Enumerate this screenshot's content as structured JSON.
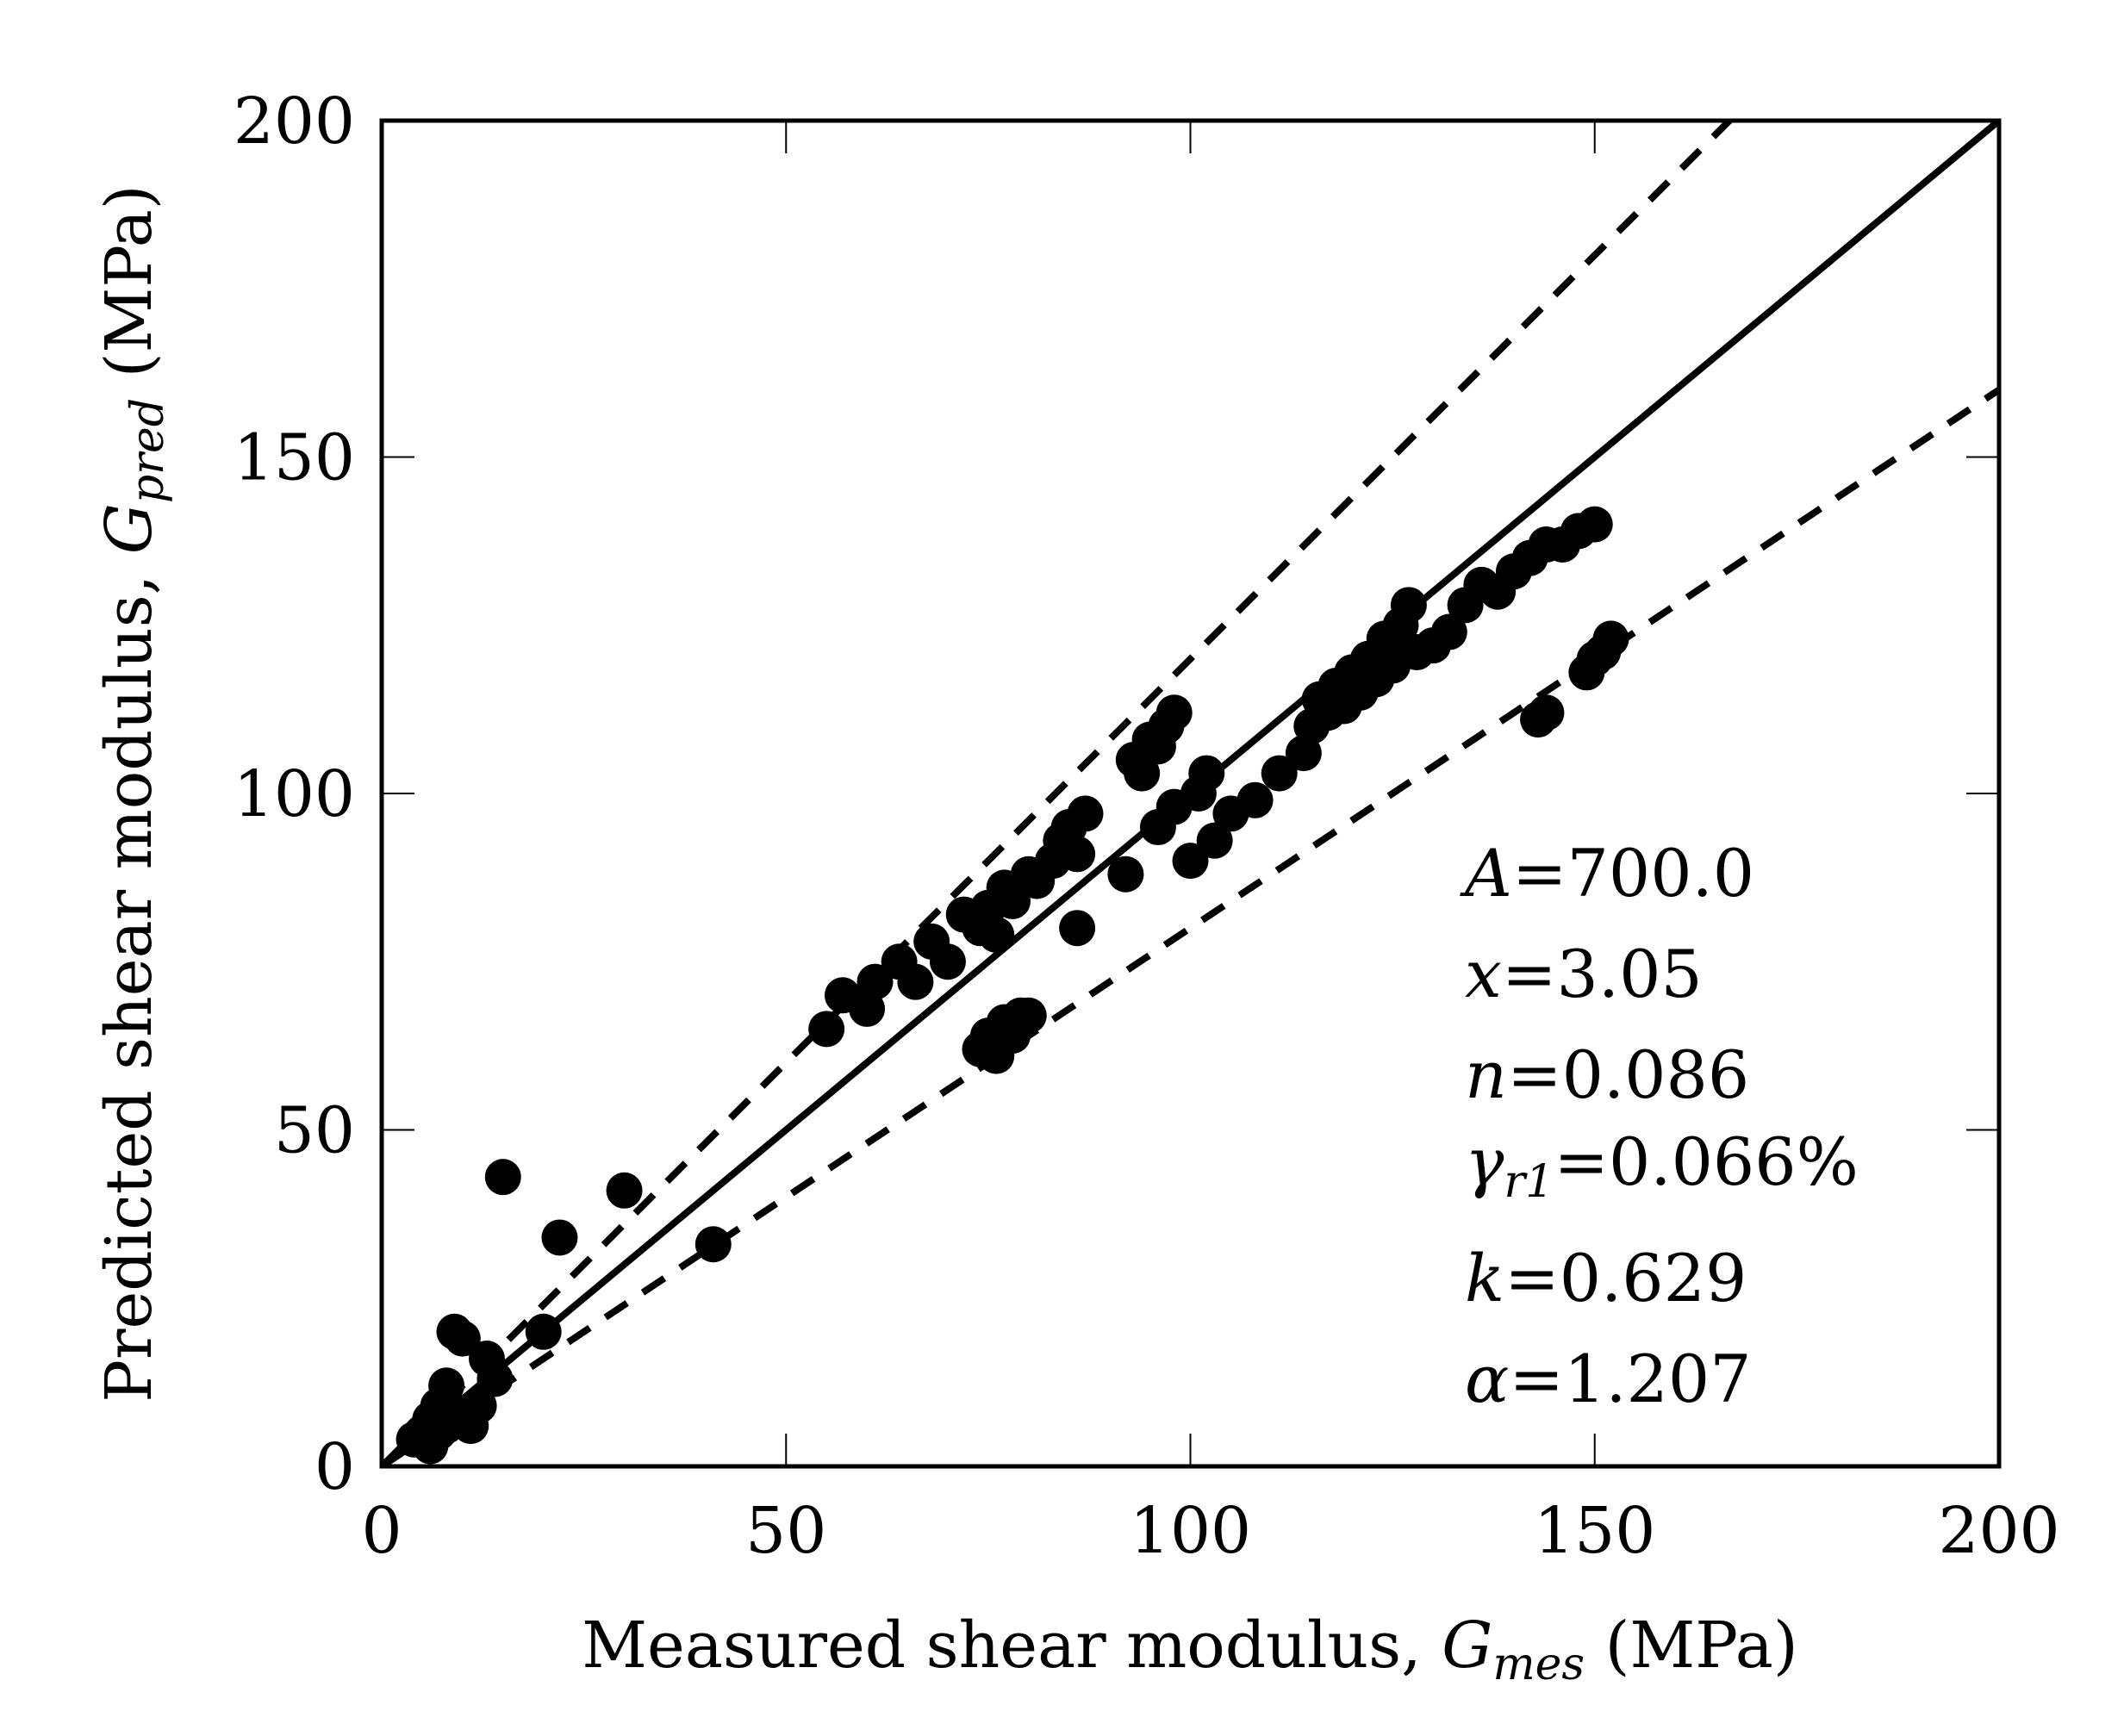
{
  "chart_data": {
    "type": "scatter",
    "title": "",
    "xlabel": {
      "text": "Measured shear modulus, ",
      "symbol": "G",
      "subscript": "mes",
      "unit": " (MPa)"
    },
    "ylabel": {
      "text": "Predicted shear modulus, ",
      "symbol": "G",
      "subscript": "pred",
      "unit": " (MPa)"
    },
    "xlim": [
      0,
      200
    ],
    "ylim": [
      0,
      200
    ],
    "xticks": [
      0,
      50,
      100,
      150,
      200
    ],
    "yticks": [
      0,
      50,
      100,
      150,
      200
    ],
    "grid": false,
    "reference_lines": [
      {
        "name": "1:1 line",
        "style": "solid",
        "slope": 1.0
      },
      {
        "name": "upper bound",
        "style": "dashed",
        "slope": 1.2
      },
      {
        "name": "lower bound",
        "style": "dashed",
        "slope": 0.8
      }
    ],
    "series": [
      {
        "name": "data",
        "marker": "filled-circle",
        "points": [
          [
            4,
            4
          ],
          [
            5,
            5
          ],
          [
            6,
            3
          ],
          [
            6,
            7
          ],
          [
            7,
            5
          ],
          [
            7,
            9
          ],
          [
            8,
            6
          ],
          [
            8,
            12
          ],
          [
            9,
            8
          ],
          [
            9,
            20
          ],
          [
            10,
            7
          ],
          [
            10,
            19
          ],
          [
            11,
            6
          ],
          [
            12,
            9
          ],
          [
            13,
            16
          ],
          [
            14,
            13
          ],
          [
            15,
            43
          ],
          [
            20,
            20
          ],
          [
            22,
            34
          ],
          [
            30,
            41
          ],
          [
            41,
            33
          ],
          [
            55,
            65
          ],
          [
            57,
            70
          ],
          [
            60,
            68
          ],
          [
            61,
            72
          ],
          [
            64,
            75
          ],
          [
            66,
            72
          ],
          [
            68,
            78
          ],
          [
            70,
            75
          ],
          [
            72,
            82
          ],
          [
            74,
            80
          ],
          [
            75,
            83
          ],
          [
            76,
            79
          ],
          [
            77,
            86
          ],
          [
            78,
            84
          ],
          [
            80,
            88
          ],
          [
            81,
            87
          ],
          [
            83,
            90
          ],
          [
            84,
            93
          ],
          [
            85,
            95
          ],
          [
            86,
            91
          ],
          [
            87,
            97
          ],
          [
            86,
            80
          ],
          [
            74,
            62
          ],
          [
            75,
            64
          ],
          [
            76,
            61
          ],
          [
            77,
            66
          ],
          [
            78,
            64
          ],
          [
            79,
            67
          ],
          [
            80,
            67
          ],
          [
            92,
            88
          ],
          [
            93,
            105
          ],
          [
            94,
            103
          ],
          [
            95,
            108
          ],
          [
            96,
            107
          ],
          [
            97,
            110
          ],
          [
            98,
            112
          ],
          [
            96,
            95
          ],
          [
            98,
            98
          ],
          [
            100,
            90
          ],
          [
            101,
            100
          ],
          [
            102,
            103
          ],
          [
            103,
            93
          ],
          [
            105,
            97
          ],
          [
            108,
            99
          ],
          [
            111,
            103
          ],
          [
            114,
            106
          ],
          [
            115,
            110
          ],
          [
            116,
            114
          ],
          [
            117,
            112
          ],
          [
            118,
            116
          ],
          [
            119,
            113
          ],
          [
            120,
            118
          ],
          [
            121,
            115
          ],
          [
            122,
            120
          ],
          [
            123,
            117
          ],
          [
            124,
            123
          ],
          [
            125,
            119
          ],
          [
            126,
            125
          ],
          [
            127,
            128
          ],
          [
            128,
            121
          ],
          [
            130,
            122
          ],
          [
            132,
            124
          ],
          [
            134,
            128
          ],
          [
            136,
            131
          ],
          [
            138,
            130
          ],
          [
            140,
            133
          ],
          [
            142,
            135
          ],
          [
            144,
            137
          ],
          [
            146,
            137
          ],
          [
            148,
            139
          ],
          [
            150,
            140
          ],
          [
            143,
            111
          ],
          [
            144,
            112
          ],
          [
            149,
            118
          ],
          [
            150,
            120
          ],
          [
            151,
            121
          ],
          [
            152,
            123
          ]
        ]
      }
    ],
    "annotations": [
      {
        "sym": "A",
        "italic": true,
        "sub": "",
        "value": "=700.0"
      },
      {
        "sym": "x",
        "italic": true,
        "sub": "",
        "value": "=3.05"
      },
      {
        "sym": "n",
        "italic": true,
        "sub": "",
        "value": "=0.086"
      },
      {
        "sym": "γ",
        "italic": true,
        "sub": "r1",
        "value": "=0.066%"
      },
      {
        "sym": "k",
        "italic": true,
        "sub": "",
        "value": "=0.629"
      },
      {
        "sym": "α",
        "italic": true,
        "sub": "",
        "value": "=1.207"
      }
    ]
  }
}
